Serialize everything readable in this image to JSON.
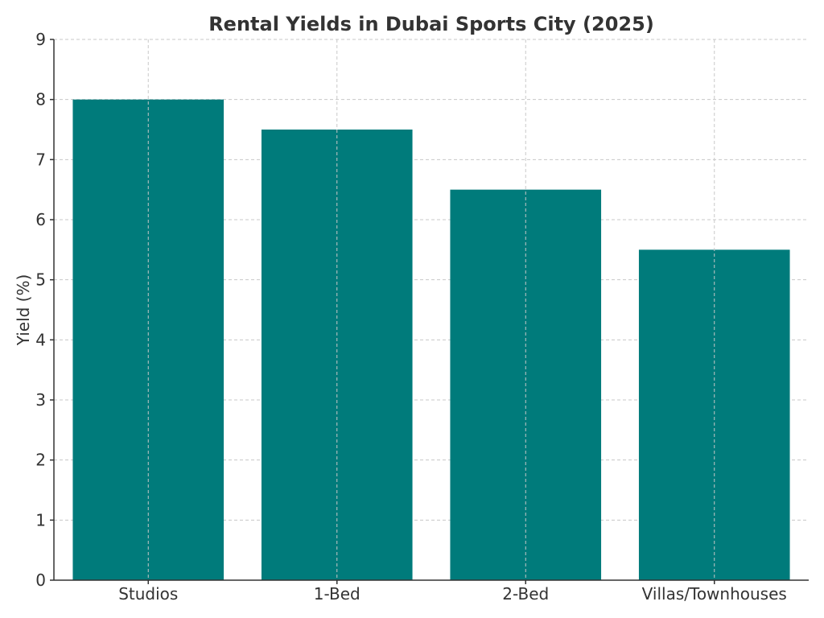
{
  "chart_data": {
    "type": "bar",
    "title": "Rental Yields in Dubai Sports City (2025)",
    "xlabel": "",
    "ylabel": "Yield (%)",
    "categories": [
      "Studios",
      "1-Bed",
      "2-Bed",
      "Villas/Townhouses"
    ],
    "values": [
      8.0,
      7.5,
      6.5,
      5.5
    ],
    "ylim": [
      0,
      9
    ],
    "yticks": [
      "0",
      "1",
      "2",
      "3",
      "4",
      "5",
      "6",
      "7",
      "8",
      "9"
    ],
    "grid": true,
    "legend": "none",
    "bar_color": "#007b7b"
  }
}
